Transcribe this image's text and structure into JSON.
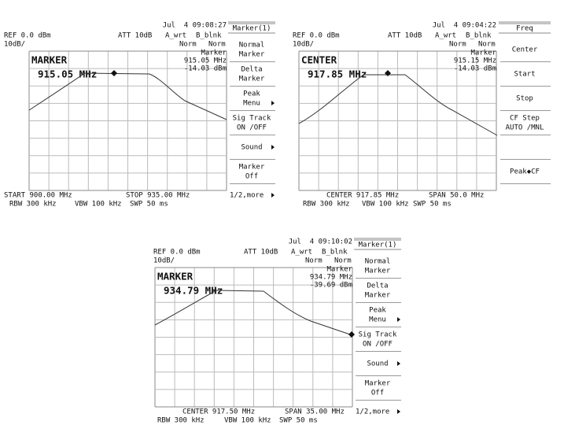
{
  "screens": [
    {
      "timestamp": "Jul  4 09:08:27",
      "ref": "REF 0.0 dBm",
      "att": "ATT 10dB",
      "a_mode": "A_wrt",
      "b_mode": "B_blnk",
      "scale": "10dB/",
      "a_det": "Norm",
      "b_det": "Norm",
      "readout": [
        "Marker",
        "915.05 MHz",
        "-14.03 dBm"
      ],
      "active_label": "MARKER",
      "active_value": "915.05 MHz",
      "footer": [
        "START 900.00 MHz",
        "STOP 935.00 MHz"
      ],
      "settings": [
        "RBW 300 kHz",
        "VBW 100 kHz",
        "SWP 50 ms"
      ],
      "menu_title": "Marker(1)",
      "menu_items": [
        [
          "Normal",
          "Marker"
        ],
        [
          "Delta",
          "Marker"
        ],
        [
          "Peak",
          "Menu"
        ],
        [
          "Sig Track",
          "ON /OFF"
        ],
        [
          "Sound"
        ],
        [
          "Marker",
          "Off"
        ]
      ],
      "menu_more": "1/2,more"
    },
    {
      "timestamp": "Jul  4 09:04:22",
      "ref": "REF 0.0 dBm",
      "att": "ATT 10dB",
      "a_mode": "A_wrt",
      "b_mode": "B_blnk",
      "scale": "10dB/",
      "a_det": "Norm",
      "b_det": "Norm",
      "readout": [
        "Marker",
        "915.15 MHz",
        "-14.03 dBm"
      ],
      "active_label": "CENTER",
      "active_value": "917.85 MHz",
      "footer": [
        "CENTER 917.85 MHz",
        "SPAN 50.0 MHz"
      ],
      "settings": [
        "RBW 300 kHz",
        "VBW 100 kHz",
        "SWP 50 ms"
      ],
      "menu_title": "Freq",
      "menu_items": [
        [
          "Center"
        ],
        [
          "Start"
        ],
        [
          "Stop"
        ],
        [
          "CF Step",
          "AUTO /MNL"
        ],
        [
          "Peak◆CF"
        ]
      ]
    },
    {
      "timestamp": "Jul  4 09:10:02",
      "ref": "REF 0.0 dBm",
      "att": "ATT 10dB",
      "a_mode": "A_wrt",
      "b_mode": "B_blnk",
      "scale": "10dB/",
      "a_det": "Norm",
      "b_det": "Norm",
      "readout": [
        "Marker",
        "934.79 MHz",
        "-39.69 dBm"
      ],
      "active_label": "MARKER",
      "active_value": "934.79 MHz",
      "footer": [
        "CENTER 917.50 MHz",
        "SPAN 35.00 MHz"
      ],
      "settings": [
        "RBW 300 kHz",
        "VBW 100 kHz",
        "SWP 50 ms"
      ],
      "menu_title": "Marker(1)",
      "menu_items": [
        [
          "Normal",
          "Marker"
        ],
        [
          "Delta",
          "Marker"
        ],
        [
          "Peak",
          "Menu"
        ],
        [
          "Sig Track",
          "ON /OFF"
        ],
        [
          "Sound"
        ],
        [
          "Marker",
          "Off"
        ]
      ],
      "menu_more": "1/2,more"
    }
  ]
}
